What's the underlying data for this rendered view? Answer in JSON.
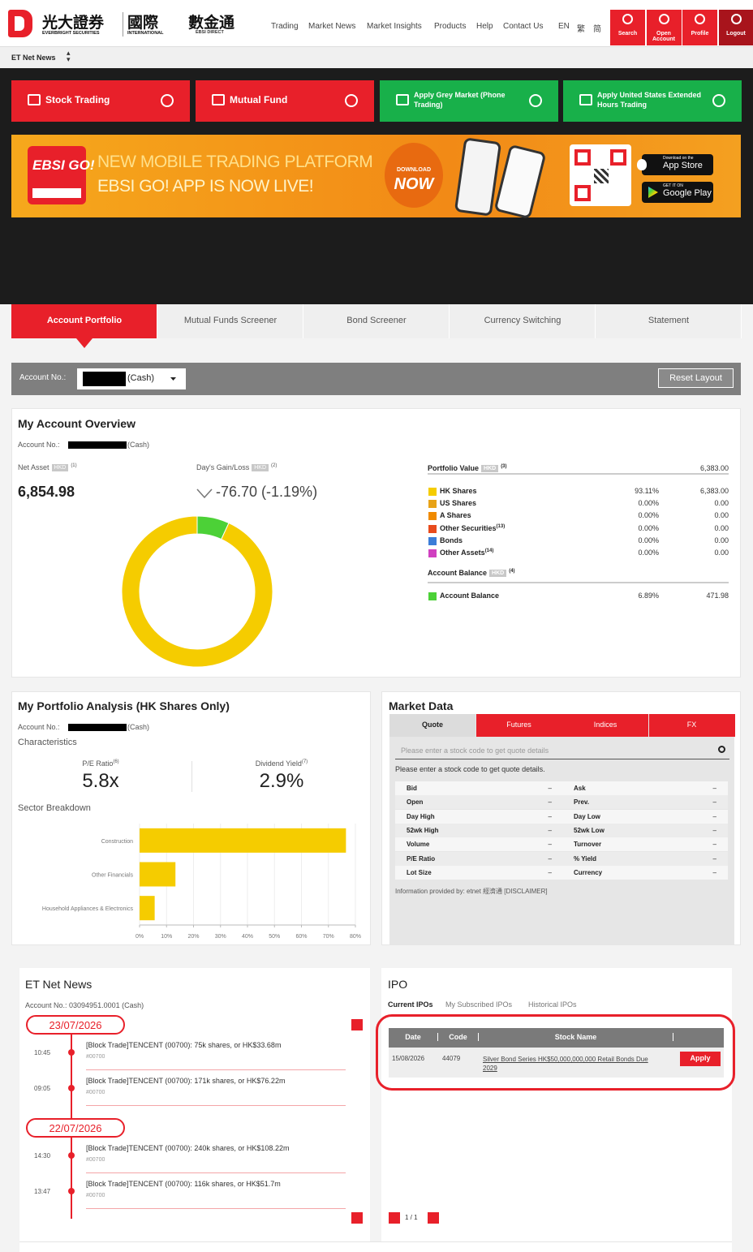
{
  "header": {
    "brand_cn": "光大證券",
    "brand_en": "EVERBRIGHT SECURITIES",
    "intl_cn": "國際",
    "intl_en": "INTERNATIONAL",
    "direct_cn": "數金通",
    "direct_en": "EBSI DIRECT",
    "nav": [
      "Trading",
      "Market News",
      "Market Insights",
      "Products",
      "Help",
      "Contact Us"
    ],
    "languages": [
      "EN",
      "繁",
      "简"
    ],
    "actions": [
      "Search",
      "Open Account",
      "Profile",
      "Logout"
    ]
  },
  "ticker": "ET Net News",
  "quick_links": [
    "Stock Trading",
    "Mutual Fund",
    "Apply Grey Market (Phone Trading)",
    "Apply United States Extended Hours Trading"
  ],
  "banner": {
    "logo": "EBSI GO!",
    "headline": "NEW MOBILE TRADING PLATFORM",
    "subline": "EBSI GO! APP IS NOW LIVE!",
    "download": "DOWNLOAD",
    "now": "NOW",
    "app_store_top": "Download on the",
    "app_store": "App Store",
    "google_top": "GET IT ON",
    "google_play": "Google Play"
  },
  "tabs": [
    "Account Portfolio",
    "Mutual Funds Screener",
    "Bond Screener",
    "Currency Switching",
    "Statement"
  ],
  "account_bar": {
    "label": "Account No.:",
    "type": "(Cash)",
    "reset": "Reset Layout"
  },
  "overview": {
    "title": "My Account Overview",
    "account_label": "Account No.:",
    "account_type": "(Cash)",
    "net_asset_label": "Net Asset",
    "currency": "HKD",
    "net_asset_note": "(1)",
    "net_asset": "6,854.98",
    "gain_label": "Day's Gain/Loss",
    "gain_note": "(2)",
    "gain": "-76.70 (-1.19%)",
    "portfolio": {
      "label": "Portfolio Value",
      "note": "(3)",
      "total": "6,383.00",
      "rows": [
        {
          "name": "HK Shares",
          "color": "#f5cc00",
          "share": 93.11,
          "share_label": "93.11%",
          "amount": "6,383.00"
        },
        {
          "name": "US Shares",
          "color": "#e8a317",
          "share": 0,
          "share_label": "0.00%",
          "amount": "0.00"
        },
        {
          "name": "A Shares",
          "color": "#f08a00",
          "share": 0,
          "share_label": "0.00%",
          "amount": "0.00"
        },
        {
          "name": "Other Securities",
          "note": "(13)",
          "color": "#e84b1c",
          "share": 0,
          "share_label": "0.00%",
          "amount": "0.00"
        },
        {
          "name": "Bonds",
          "color": "#3b7dd8",
          "share": 0,
          "share_label": "0.00%",
          "amount": "0.00"
        },
        {
          "name": "Other Assets",
          "note": "(14)",
          "color": "#d040c0",
          "share": 0,
          "share_label": "0.00%",
          "amount": "0.00"
        }
      ]
    },
    "balance": {
      "label": "Account Balance",
      "note": "(4)",
      "rows": [
        {
          "name": "Account Balance",
          "color": "#4cd137",
          "share": 6.89,
          "share_label": "6.89%",
          "amount": "471.98"
        }
      ]
    }
  },
  "analysis": {
    "title": "My Portfolio Analysis (HK Shares Only)",
    "account_label": "Account No.:",
    "account_type": "(Cash)",
    "characteristics": "Characteristics",
    "pe_label": "P/E Ratio",
    "pe_note": "(6)",
    "pe": "5.8x",
    "dy_label": "Dividend Yield",
    "dy_note": "(7)",
    "dy": "2.9%",
    "sector_title": "Sector Breakdown",
    "sectors": {
      "type": "bar",
      "orientation": "horizontal",
      "categories": [
        "Construction",
        "Other Financials",
        "Household Appliances & Electronics"
      ],
      "values": [
        76.5,
        13.3,
        5.6
      ],
      "color": "#f5cc00",
      "xlim": [
        0,
        80
      ],
      "xticks": [
        {
          "value": 0,
          "label": "0%"
        },
        {
          "value": 10,
          "label": "10%"
        },
        {
          "value": 20,
          "label": "20%"
        },
        {
          "value": 30,
          "label": "30%"
        },
        {
          "value": 40,
          "label": "40%"
        },
        {
          "value": 50,
          "label": "50%"
        },
        {
          "value": 60,
          "label": "60%"
        },
        {
          "value": 70,
          "label": "70%"
        },
        {
          "value": 80,
          "label": "80%"
        }
      ],
      "grid": true
    }
  },
  "market": {
    "title": "Market Data",
    "tabs": [
      "Quote",
      "Futures",
      "Indices",
      "FX"
    ],
    "placeholder": "Please enter a stock code to get quote details",
    "message": "Please enter a stock code to get quote details.",
    "fields": [
      [
        "Bid",
        "–",
        "Ask",
        "–"
      ],
      [
        "Open",
        "–",
        "Prev.",
        "–"
      ],
      [
        "Day High",
        "–",
        "Day Low",
        "–"
      ],
      [
        "52wk High",
        "–",
        "52wk Low",
        "–"
      ],
      [
        "Volume",
        "–",
        "Turnover",
        "–"
      ],
      [
        "P/E Ratio",
        "–",
        "% Yield",
        "–"
      ],
      [
        "Lot Size",
        "–",
        "Currency",
        "–"
      ]
    ],
    "source": "Information provided by: etnet 經濟通 [DISCLAIMER]"
  },
  "news": {
    "title": "ET Net News",
    "account": "Account No.: 03094951.0001 (Cash)",
    "days": [
      {
        "date": "23/07/2026",
        "items": [
          {
            "time": "10:45",
            "headline": "[Block Trade]TENCENT (00700): 75k shares, or HK$33.68m",
            "code": "#00700"
          },
          {
            "time": "09:05",
            "headline": "[Block Trade]TENCENT (00700): 171k shares, or HK$76.22m",
            "code": "#00700"
          }
        ]
      },
      {
        "date": "22/07/2026",
        "items": [
          {
            "time": "14:30",
            "headline": "[Block Trade]TENCENT (00700): 240k shares, or HK$108.22m",
            "code": "#00700"
          },
          {
            "time": "13:47",
            "headline": "[Block Trade]TENCENT (00700): 116k shares, or HK$51.7m",
            "code": "#00700"
          }
        ]
      }
    ]
  },
  "ipo": {
    "title": "IPO",
    "tabs": [
      "Current IPOs",
      "My Subscribed IPOs",
      "Historical IPOs"
    ],
    "columns": [
      "Date",
      "Code",
      "Stock Name"
    ],
    "rows": [
      {
        "date": "15/08/2026",
        "code": "44079",
        "name": "Silver Bond Series HK$50,000,000,000 Retail Bonds Due 2029",
        "action": "Apply"
      }
    ],
    "pages": "1 / 1"
  }
}
